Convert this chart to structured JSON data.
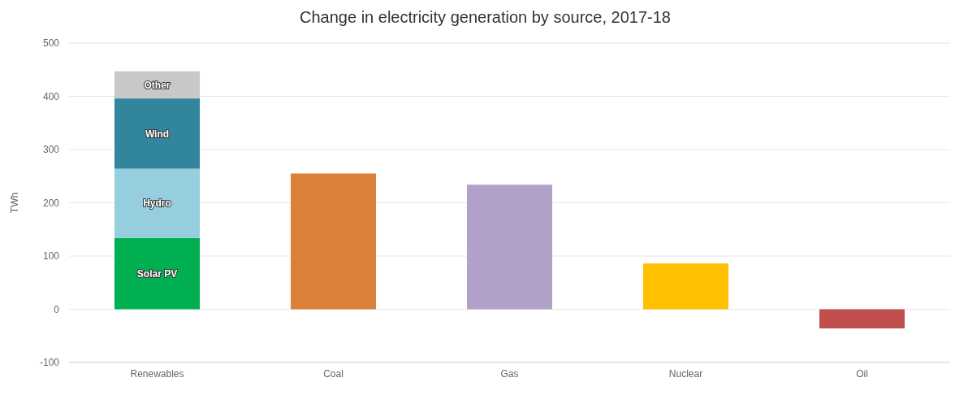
{
  "chart_data": {
    "type": "bar",
    "title": "Change in electricity generation by source, 2017-18",
    "ylabel": "TWh",
    "categories": [
      "Renewables",
      "Coal",
      "Gas",
      "Nuclear",
      "Oil"
    ],
    "stacked": true,
    "ylim": [
      -100,
      500
    ],
    "yticks": [
      -100,
      0,
      100,
      200,
      300,
      400,
      500
    ],
    "grid": "y",
    "series": [
      {
        "name": "Solar PV",
        "color": "#00b050",
        "values": [
          134,
          null,
          null,
          null,
          null
        ]
      },
      {
        "name": "Hydro",
        "color": "#96cddf",
        "values": [
          130,
          null,
          null,
          null,
          null
        ]
      },
      {
        "name": "Wind",
        "color": "#31859c",
        "values": [
          132,
          null,
          null,
          null,
          null
        ]
      },
      {
        "name": "Other",
        "color": "#c8c8c8",
        "values": [
          51,
          null,
          null,
          null,
          null
        ]
      },
      {
        "colors": [
          null,
          "#da8137",
          "#b1a0c8",
          "#ffc000",
          "#c0504d"
        ],
        "values": [
          null,
          255,
          234,
          86,
          -36
        ]
      }
    ]
  }
}
